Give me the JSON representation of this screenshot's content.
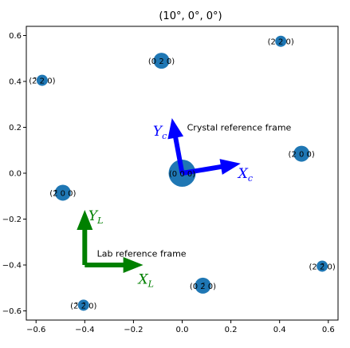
{
  "chart_data": {
    "type": "scatter",
    "title": "(10°, 0°, 0°)",
    "xlim": [
      -0.64,
      0.64
    ],
    "ylim": [
      -0.64,
      0.64
    ],
    "xticks": [
      "−0.6",
      "−0.4",
      "−0.2",
      "0.0",
      "0.2",
      "0.4",
      "0.6"
    ],
    "yticks": [
      "−0.6",
      "−0.4",
      "−0.2",
      "0.0",
      "0.2",
      "0.4",
      "0.6"
    ],
    "xtick_values": [
      -0.6,
      -0.4,
      -0.2,
      0.0,
      0.2,
      0.4,
      0.6
    ],
    "ytick_values": [
      -0.6,
      -0.4,
      -0.2,
      0.0,
      0.2,
      0.4,
      0.6
    ],
    "point_color": "#1f77b4",
    "points": [
      {
        "x": 0.0,
        "y": 0.0,
        "size": "large",
        "label": "(0 0 0)"
      },
      {
        "x": 0.49,
        "y": 0.085,
        "size": "medium",
        "label": "(2 0 0)"
      },
      {
        "x": -0.49,
        "y": -0.085,
        "size": "medium",
        "label": "(2̄ 0 0)"
      },
      {
        "x": -0.085,
        "y": 0.49,
        "size": "medium",
        "label": "(0 2 0)"
      },
      {
        "x": 0.085,
        "y": -0.49,
        "size": "medium",
        "label": "(0 2̄ 0)"
      },
      {
        "x": 0.405,
        "y": 0.575,
        "size": "small",
        "label": "(2 2 0)"
      },
      {
        "x": -0.575,
        "y": 0.405,
        "size": "small",
        "label": "(2̄ 2 0)"
      },
      {
        "x": 0.575,
        "y": -0.405,
        "size": "small",
        "label": "(2 2̄ 0)"
      },
      {
        "x": -0.405,
        "y": -0.575,
        "size": "small",
        "label": "(2̄ 2̄ 0)"
      }
    ],
    "annotations": [
      {
        "text": "Crystal reference frame",
        "x": 0.02,
        "y": 0.2
      },
      {
        "text": "Lab reference frame",
        "x": -0.35,
        "y": -0.35
      }
    ],
    "crystal_frame": {
      "color": "#0000ff",
      "origin": [
        0,
        0
      ],
      "x_arrow_end": [
        0.24,
        0.042
      ],
      "y_arrow_end": [
        -0.042,
        0.24
      ],
      "x_label": {
        "sym": "X",
        "sub": "c",
        "x": 0.23,
        "y": 0.0
      },
      "y_label": {
        "sym": "Y",
        "sub": "c",
        "x": -0.12,
        "y": 0.185
      }
    },
    "lab_frame": {
      "color": "#008000",
      "origin": [
        -0.4,
        -0.4
      ],
      "x_arrow_end": [
        -0.16,
        -0.4
      ],
      "y_arrow_end": [
        -0.4,
        -0.16
      ],
      "x_label": {
        "sym": "X",
        "sub": "L",
        "x": -0.18,
        "y": -0.46
      },
      "y_label": {
        "sym": "Y",
        "sub": "L",
        "x": -0.385,
        "y": -0.185
      }
    }
  }
}
